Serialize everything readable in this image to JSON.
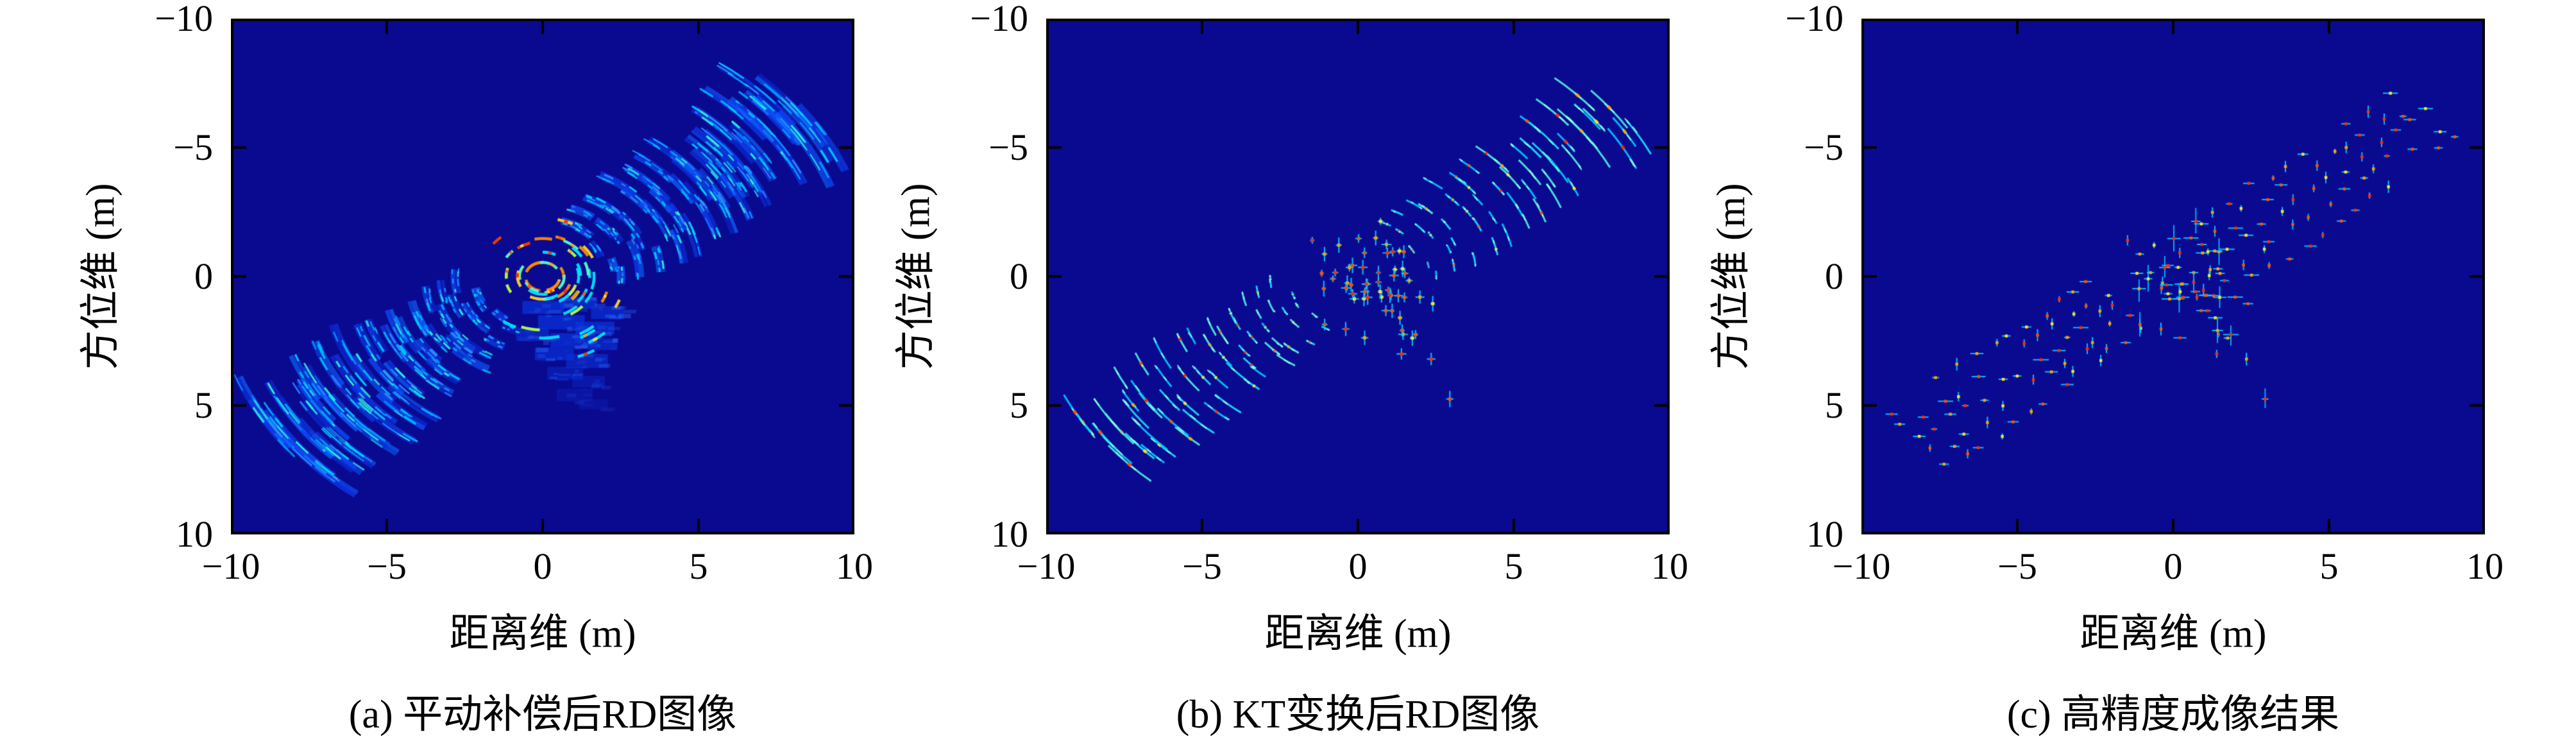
{
  "page": {
    "background": "#ffffff"
  },
  "chart_data": {
    "type": "scatter",
    "description_note": "Three ISAR radar image panels sharing one scatterer target model",
    "background": "#0a0a90",
    "frame_color": "#000000",
    "axes": {
      "x": {
        "label": "距离维 (m)",
        "range": [
          -10,
          10
        ],
        "ticks": [
          -10,
          -5,
          0,
          5,
          10
        ],
        "tick_labels": [
          "−10",
          "−5",
          "0",
          "5",
          "10"
        ],
        "reversed": false
      },
      "y": {
        "label": "方位维 (m)",
        "range": [
          -10,
          10
        ],
        "ticks": [
          -10,
          -5,
          0,
          5,
          10
        ],
        "tick_labels": [
          "−10",
          "−5",
          "0",
          "5",
          "10"
        ],
        "reversed": true
      }
    },
    "panels": [
      {
        "id": "a",
        "caption": "(a) 平动补偿后RD图像",
        "style": "arc_smeared",
        "smear": [
          0.105,
          0.175
        ],
        "body_smear": [
          0.16,
          0.34
        ],
        "seed": 7
      },
      {
        "id": "b",
        "caption": "(b) KT变换后RD图像",
        "style": "azimuth_smeared",
        "smear": [
          0.05,
          0.095
        ],
        "core_prob": 0.55,
        "seed": 8
      },
      {
        "id": "c",
        "caption": "(c) 高精度成像结果",
        "style": "focused",
        "horizontal_arm_prob": 0.62,
        "seed": 9
      }
    ],
    "target_model": {
      "body": {
        "center": [
          0.55,
          0.15
        ],
        "sigma": [
          0.95,
          1.15
        ],
        "count": 40,
        "seed": 101
      },
      "ring": {
        "center": [
          0.15,
          -0.35
        ],
        "radius": 1.15,
        "count": 14,
        "jitter": 0.18,
        "seed": 55
      },
      "wings": [
        {
          "name": "upper-right",
          "from": [
            1.75,
            -1.05
          ],
          "to": [
            8.15,
            -6.35
          ],
          "width": 2.7,
          "cols": 13,
          "rows": 5,
          "jitter": 0.22,
          "dropout": 0.13,
          "seed": 11
        },
        {
          "name": "lower-left",
          "from": [
            -1.75,
            1.05
          ],
          "to": [
            -8.15,
            6.35
          ],
          "width": 2.7,
          "cols": 13,
          "rows": 5,
          "jitter": 0.22,
          "dropout": 0.13,
          "seed": 29
        }
      ],
      "trail": [
        [
          1.35,
          1.6
        ],
        [
          1.85,
          2.25
        ],
        [
          2.35,
          3.2
        ],
        [
          2.95,
          4.75
        ]
      ],
      "blocks": [
        [
          -0.65,
          0.95,
          1.35,
          0.5,
          0.95
        ],
        [
          0.55,
          0.8,
          1.2,
          0.45,
          0.9
        ],
        [
          1.55,
          1.15,
          1.05,
          0.5,
          0.85
        ],
        [
          -0.15,
          1.5,
          1.5,
          0.55,
          0.95
        ],
        [
          1.05,
          1.75,
          1.25,
          0.5,
          0.9
        ],
        [
          -0.85,
          2.0,
          1.05,
          0.5,
          0.8
        ],
        [
          0.25,
          2.2,
          1.45,
          0.55,
          0.95
        ],
        [
          1.45,
          2.4,
          0.95,
          0.45,
          0.8
        ],
        [
          -0.25,
          2.75,
          1.25,
          0.5,
          0.85
        ],
        [
          0.75,
          3.0,
          1.35,
          0.55,
          0.75
        ],
        [
          0.15,
          3.5,
          1.15,
          0.5,
          0.55
        ],
        [
          0.95,
          3.85,
          1.05,
          0.45,
          0.45
        ],
        [
          0.45,
          4.35,
          1.15,
          0.5,
          0.35
        ],
        [
          1.15,
          4.75,
          0.95,
          0.4,
          0.25
        ]
      ]
    },
    "palette": {
      "wing_base_a": [
        "#0a2ad2",
        "#0d3cf0",
        "#1050ff",
        "#0a66ff"
      ],
      "wing_lite_a": [
        "#2b8cff",
        "#00a8ff",
        "#00d0ff",
        "#31f0d8"
      ],
      "body_hot": [
        "#00e4ff",
        "#54ffc4",
        "#b4ff48",
        "#ffd02a",
        "#ff8800",
        "#ff3a00"
      ],
      "streak_b": [
        "#00c8ff",
        "#19e0ff",
        "#50f0e0"
      ],
      "core_hot": [
        "#ffe02a",
        "#ffa200",
        "#ff5000",
        "#ff2a00"
      ],
      "psf_arm": "#00c8ff",
      "block_fill": "#0a34dc",
      "block_lite": "#2e6cff"
    }
  }
}
